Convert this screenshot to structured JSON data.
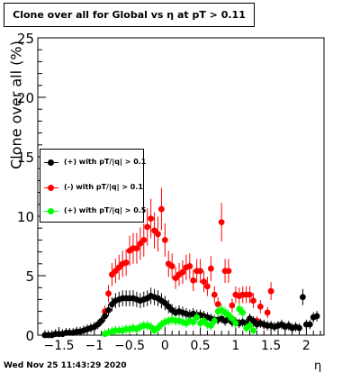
{
  "title": "Clone  over all for Global vs   η at pT > 0.11",
  "footer": {
    "timestamp": "Wed Nov 25 11:43:29 2020"
  },
  "chart_data": {
    "type": "scatter",
    "title": "Clone  over all for Global vs   η at pT > 0.11",
    "xlabel": "η",
    "ylabel": "Clone   over all (%)",
    "xlim": [
      -1.8,
      2.25
    ],
    "ylim": [
      0,
      25
    ],
    "x_ticks": [
      -1.5,
      -1,
      -0.5,
      0,
      0.5,
      1,
      1.5,
      2
    ],
    "x_tick_labels": [
      "−1.5",
      "−1",
      "−0.5",
      "0",
      "0.5",
      "1",
      "1.5",
      "2"
    ],
    "y_ticks": [
      0,
      5,
      10,
      15,
      20,
      25
    ],
    "grid": false,
    "legend_position": "left-middle",
    "series": [
      {
        "name": "(+) with pT/|q| > 0.1",
        "color": "#000000",
        "points": [
          [
            -1.7,
            0.0
          ],
          [
            -1.65,
            0.0
          ],
          [
            -1.6,
            0.0
          ],
          [
            -1.55,
            0.1
          ],
          [
            -1.5,
            0.1
          ],
          [
            -1.45,
            0.1
          ],
          [
            -1.4,
            0.2
          ],
          [
            -1.35,
            0.2
          ],
          [
            -1.3,
            0.2
          ],
          [
            -1.25,
            0.3
          ],
          [
            -1.2,
            0.3
          ],
          [
            -1.15,
            0.4
          ],
          [
            -1.1,
            0.5
          ],
          [
            -1.05,
            0.6
          ],
          [
            -1.0,
            0.7
          ],
          [
            -0.95,
            0.9
          ],
          [
            -0.9,
            1.2
          ],
          [
            -0.85,
            1.6
          ],
          [
            -0.8,
            2.1
          ],
          [
            -0.75,
            2.6
          ],
          [
            -0.7,
            2.9
          ],
          [
            -0.65,
            3.0
          ],
          [
            -0.6,
            3.1
          ],
          [
            -0.55,
            3.1
          ],
          [
            -0.5,
            3.1
          ],
          [
            -0.45,
            3.1
          ],
          [
            -0.4,
            3.0
          ],
          [
            -0.35,
            2.9
          ],
          [
            -0.3,
            3.0
          ],
          [
            -0.25,
            3.1
          ],
          [
            -0.2,
            3.3
          ],
          [
            -0.15,
            3.2
          ],
          [
            -0.1,
            3.1
          ],
          [
            -0.05,
            2.9
          ],
          [
            0.0,
            2.7
          ],
          [
            0.05,
            2.4
          ],
          [
            0.1,
            2.1
          ],
          [
            0.15,
            1.9
          ],
          [
            0.2,
            2.0
          ],
          [
            0.25,
            1.9
          ],
          [
            0.3,
            1.8
          ],
          [
            0.35,
            1.7
          ],
          [
            0.4,
            1.8
          ],
          [
            0.45,
            1.7
          ],
          [
            0.5,
            1.7
          ],
          [
            0.55,
            1.6
          ],
          [
            0.6,
            1.5
          ],
          [
            0.65,
            1.4
          ],
          [
            0.7,
            1.3
          ],
          [
            0.75,
            1.3
          ],
          [
            0.8,
            1.4
          ],
          [
            0.85,
            1.2
          ],
          [
            0.9,
            1.4
          ],
          [
            0.95,
            1.1
          ],
          [
            1.0,
            1.1
          ],
          [
            1.05,
            1.0
          ],
          [
            1.1,
            1.1
          ],
          [
            1.15,
            1.0
          ],
          [
            1.2,
            1.4
          ],
          [
            1.25,
            1.2
          ],
          [
            1.3,
            0.9
          ],
          [
            1.35,
            1.0
          ],
          [
            1.4,
            0.9
          ],
          [
            1.45,
            0.8
          ],
          [
            1.5,
            0.8
          ],
          [
            1.55,
            0.7
          ],
          [
            1.6,
            0.8
          ],
          [
            1.65,
            0.9
          ],
          [
            1.7,
            0.7
          ],
          [
            1.75,
            0.8
          ],
          [
            1.8,
            0.6
          ],
          [
            1.85,
            0.7
          ],
          [
            1.9,
            0.6
          ],
          [
            1.95,
            3.2
          ],
          [
            2.0,
            0.9
          ],
          [
            2.05,
            0.9
          ],
          [
            2.1,
            1.5
          ],
          [
            2.15,
            1.6
          ]
        ]
      },
      {
        "name": "(-) with pT/|q| > 0.1",
        "color": "#ff0000",
        "points": [
          [
            -0.85,
            2.0
          ],
          [
            -0.8,
            3.5
          ],
          [
            -0.75,
            5.1
          ],
          [
            -0.7,
            5.4
          ],
          [
            -0.65,
            5.7
          ],
          [
            -0.6,
            6.0
          ],
          [
            -0.55,
            6.1
          ],
          [
            -0.5,
            7.1
          ],
          [
            -0.45,
            7.3
          ],
          [
            -0.4,
            7.3
          ],
          [
            -0.35,
            7.7
          ],
          [
            -0.3,
            8.0
          ],
          [
            -0.25,
            9.1
          ],
          [
            -0.2,
            9.8
          ],
          [
            -0.15,
            8.8
          ],
          [
            -0.1,
            8.5
          ],
          [
            -0.05,
            10.6
          ],
          [
            0.0,
            8.0
          ],
          [
            0.05,
            6.0
          ],
          [
            0.1,
            5.8
          ],
          [
            0.15,
            4.8
          ],
          [
            0.2,
            5.1
          ],
          [
            0.25,
            5.3
          ],
          [
            0.3,
            5.7
          ],
          [
            0.35,
            5.8
          ],
          [
            0.4,
            4.6
          ],
          [
            0.45,
            5.4
          ],
          [
            0.5,
            5.4
          ],
          [
            0.55,
            4.5
          ],
          [
            0.6,
            4.1
          ],
          [
            0.65,
            5.6
          ],
          [
            0.7,
            3.4
          ],
          [
            0.75,
            2.6
          ],
          [
            0.8,
            9.5
          ],
          [
            0.85,
            5.4
          ],
          [
            0.9,
            5.4
          ],
          [
            0.95,
            2.5
          ],
          [
            1.0,
            3.4
          ],
          [
            1.05,
            3.3
          ],
          [
            1.1,
            3.4
          ],
          [
            1.15,
            3.4
          ],
          [
            1.2,
            3.4
          ],
          [
            1.25,
            2.9
          ],
          [
            1.3,
            1.2
          ],
          [
            1.35,
            2.4
          ],
          [
            1.4,
            0.9
          ],
          [
            1.45,
            1.9
          ],
          [
            1.5,
            3.7
          ]
        ]
      },
      {
        "name": "(+) with pT/|q| > 0.5",
        "color": "#00ff00",
        "points": [
          [
            -0.85,
            0.1
          ],
          [
            -0.8,
            0.2
          ],
          [
            -0.75,
            0.3
          ],
          [
            -0.7,
            0.4
          ],
          [
            -0.65,
            0.4
          ],
          [
            -0.6,
            0.4
          ],
          [
            -0.55,
            0.5
          ],
          [
            -0.5,
            0.5
          ],
          [
            -0.45,
            0.6
          ],
          [
            -0.4,
            0.5
          ],
          [
            -0.35,
            0.7
          ],
          [
            -0.3,
            0.8
          ],
          [
            -0.25,
            0.8
          ],
          [
            -0.2,
            0.7
          ],
          [
            -0.15,
            0.4
          ],
          [
            -0.1,
            0.6
          ],
          [
            -0.05,
            0.9
          ],
          [
            0.0,
            1.1
          ],
          [
            0.05,
            1.2
          ],
          [
            0.1,
            1.3
          ],
          [
            0.15,
            1.2
          ],
          [
            0.2,
            1.2
          ],
          [
            0.25,
            1.1
          ],
          [
            0.3,
            1.0
          ],
          [
            0.35,
            1.2
          ],
          [
            0.4,
            1.1
          ],
          [
            0.45,
            1.5
          ],
          [
            0.5,
            1.0
          ],
          [
            0.55,
            1.2
          ],
          [
            0.6,
            0.9
          ],
          [
            0.65,
            0.8
          ],
          [
            0.7,
            1.2
          ],
          [
            0.75,
            2.0
          ],
          [
            0.8,
            2.1
          ],
          [
            0.85,
            1.9
          ],
          [
            0.9,
            1.7
          ],
          [
            0.95,
            1.4
          ],
          [
            1.0,
            1.0
          ],
          [
            1.05,
            2.2
          ],
          [
            1.1,
            1.9
          ],
          [
            1.15,
            0.6
          ],
          [
            1.2,
            0.8
          ],
          [
            1.25,
            0.4
          ]
        ]
      }
    ]
  }
}
